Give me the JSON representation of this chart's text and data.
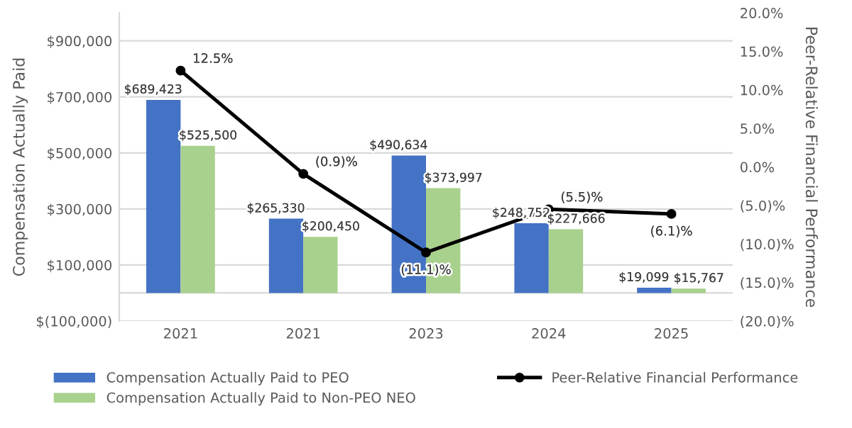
{
  "chart_data": {
    "type": "bar",
    "categories": [
      "2021",
      "2021",
      "2023",
      "2024",
      "2025"
    ],
    "ylabel": "Compensation Actually Paid",
    "y2label": "Peer-Relative Financial Performance",
    "ylim": [
      -100000,
      1000000
    ],
    "yticks": [
      {
        "value": -100000,
        "label": "$(100,000)"
      },
      {
        "value": 100000,
        "label": "$100,000"
      },
      {
        "value": 300000,
        "label": "$300,000"
      },
      {
        "value": 500000,
        "label": "$500,000"
      },
      {
        "value": 700000,
        "label": "$700,000"
      },
      {
        "value": 900000,
        "label": "$900,000"
      }
    ],
    "y2lim": [
      -20,
      20
    ],
    "y2ticks": [
      {
        "value": -20,
        "label": "(20.0)%"
      },
      {
        "value": -15,
        "label": "(15.0)%"
      },
      {
        "value": -10,
        "label": "(10.0)%"
      },
      {
        "value": -5,
        "label": "(5.0)%"
      },
      {
        "value": 0,
        "label": "0.0%"
      },
      {
        "value": 5,
        "label": "5.0%"
      },
      {
        "value": 10,
        "label": "10.0%"
      },
      {
        "value": 15,
        "label": "15.0%"
      },
      {
        "value": 20,
        "label": "20.0%"
      }
    ],
    "grid": "y",
    "legend": "bottom",
    "series": [
      {
        "name": "Compensation Actually Paid to PEO",
        "color": "#4472c4",
        "values": [
          689423,
          265330,
          490634,
          248752,
          19099
        ],
        "value_labels": [
          "$689,423",
          "$265,330",
          "$490,634",
          "$248,752",
          "$19,099"
        ]
      },
      {
        "name": "Compensation Actually Paid to Non-PEO NEO",
        "color": "#a9d18e",
        "values": [
          525500,
          200450,
          373997,
          227666,
          15767
        ],
        "value_labels": [
          "$525,500",
          "$200,450",
          "$373,997",
          "$227,666",
          "$15,767"
        ]
      },
      {
        "name": "Peer-Relative Financial Performance",
        "type": "line",
        "axis": "y2",
        "color": "#000000",
        "marker": "circle",
        "line_style": "solid",
        "values": [
          12.5,
          -0.9,
          -11.1,
          -5.5,
          -6.1
        ],
        "value_labels": [
          "12.5%",
          "(0.9)%",
          "(11.1)%",
          "(5.5)%",
          "(6.1)%"
        ]
      }
    ]
  }
}
